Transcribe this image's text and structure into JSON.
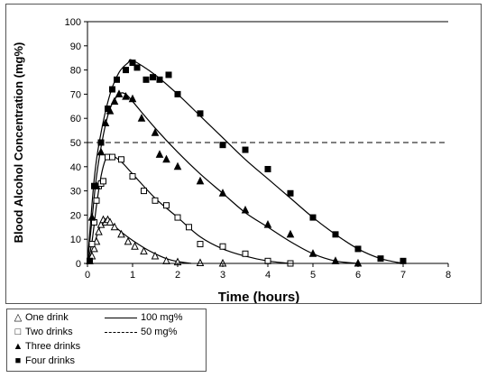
{
  "chart_data": {
    "type": "scatter",
    "title": "",
    "xlabel": "Time (hours)",
    "ylabel": "Blood Alcohol Concentration (mg%)",
    "xlim": [
      0,
      8
    ],
    "ylim": [
      0,
      100
    ],
    "xticks": [
      "0",
      "1",
      "2",
      "3",
      "4",
      "5",
      "6",
      "7",
      "8"
    ],
    "yticks": [
      "0",
      "10",
      "20",
      "30",
      "40",
      "50",
      "60",
      "70",
      "80",
      "90",
      "100"
    ],
    "reference_lines": [
      {
        "label": "100 mg%",
        "y": 100,
        "style": "solid"
      },
      {
        "label": "50 mg%",
        "y": 50,
        "style": "dashed"
      }
    ],
    "legend_position": "bottom-left, below chart",
    "series": [
      {
        "name": "One drink",
        "marker": "open-triangle",
        "points": [
          [
            0.05,
            1
          ],
          [
            0.1,
            3
          ],
          [
            0.15,
            6
          ],
          [
            0.2,
            9
          ],
          [
            0.25,
            13
          ],
          [
            0.3,
            16
          ],
          [
            0.35,
            18
          ],
          [
            0.4,
            17
          ],
          [
            0.45,
            18
          ],
          [
            0.5,
            17
          ],
          [
            0.6,
            15
          ],
          [
            0.75,
            12
          ],
          [
            0.9,
            9
          ],
          [
            1.05,
            7
          ],
          [
            1.25,
            5
          ],
          [
            1.5,
            3
          ],
          [
            1.75,
            1
          ],
          [
            2.0,
            0.5
          ],
          [
            2.5,
            0.2
          ],
          [
            3.0,
            0
          ]
        ],
        "curve": [
          [
            0,
            0
          ],
          [
            0.1,
            5
          ],
          [
            0.2,
            11
          ],
          [
            0.3,
            16
          ],
          [
            0.4,
            18
          ],
          [
            0.5,
            17
          ],
          [
            0.75,
            13
          ],
          [
            1.0,
            9.5
          ],
          [
            1.25,
            6.5
          ],
          [
            1.5,
            4
          ],
          [
            1.75,
            2
          ],
          [
            2.0,
            0.8
          ],
          [
            2.3,
            0
          ]
        ]
      },
      {
        "name": "Two drinks",
        "marker": "open-square",
        "points": [
          [
            0.05,
            1
          ],
          [
            0.1,
            8
          ],
          [
            0.15,
            17
          ],
          [
            0.2,
            26
          ],
          [
            0.25,
            32
          ],
          [
            0.3,
            33
          ],
          [
            0.35,
            34
          ],
          [
            0.45,
            44
          ],
          [
            0.55,
            44
          ],
          [
            0.75,
            43
          ],
          [
            1.0,
            36
          ],
          [
            1.25,
            30
          ],
          [
            1.5,
            26
          ],
          [
            1.75,
            24
          ],
          [
            2.0,
            19
          ],
          [
            2.25,
            15
          ],
          [
            2.5,
            8
          ],
          [
            3.0,
            7
          ],
          [
            3.5,
            4
          ],
          [
            4.0,
            1
          ],
          [
            4.5,
            0
          ]
        ],
        "curve": [
          [
            0,
            0
          ],
          [
            0.1,
            9
          ],
          [
            0.2,
            24
          ],
          [
            0.3,
            36
          ],
          [
            0.4,
            43
          ],
          [
            0.5,
            45
          ],
          [
            0.75,
            42
          ],
          [
            1.0,
            37
          ],
          [
            1.5,
            27
          ],
          [
            2.0,
            19
          ],
          [
            2.5,
            11
          ],
          [
            3.0,
            6
          ],
          [
            3.5,
            3
          ],
          [
            4.0,
            1
          ],
          [
            4.5,
            0
          ]
        ]
      },
      {
        "name": "Three drinks",
        "marker": "filled-triangle",
        "points": [
          [
            0.1,
            19
          ],
          [
            0.2,
            32
          ],
          [
            0.3,
            46
          ],
          [
            0.4,
            58
          ],
          [
            0.5,
            63
          ],
          [
            0.6,
            67
          ],
          [
            0.7,
            70
          ],
          [
            0.85,
            69
          ],
          [
            1.0,
            68
          ],
          [
            1.2,
            60
          ],
          [
            1.5,
            54
          ],
          [
            1.6,
            45
          ],
          [
            1.75,
            43
          ],
          [
            2.0,
            40
          ],
          [
            2.5,
            34
          ],
          [
            3.0,
            29
          ],
          [
            3.5,
            22
          ],
          [
            4.0,
            16
          ],
          [
            4.5,
            12
          ],
          [
            5.0,
            4
          ],
          [
            5.5,
            1
          ],
          [
            6.0,
            0
          ]
        ],
        "curve": [
          [
            0,
            0
          ],
          [
            0.1,
            18
          ],
          [
            0.2,
            36
          ],
          [
            0.35,
            53
          ],
          [
            0.5,
            64
          ],
          [
            0.7,
            70
          ],
          [
            0.85,
            70
          ],
          [
            1.0,
            67
          ],
          [
            1.5,
            56
          ],
          [
            2.0,
            46
          ],
          [
            2.5,
            37
          ],
          [
            3.0,
            29
          ],
          [
            3.5,
            21
          ],
          [
            4.0,
            15
          ],
          [
            4.5,
            9
          ],
          [
            5.0,
            4
          ],
          [
            5.5,
            1
          ],
          [
            6.0,
            0
          ]
        ]
      },
      {
        "name": "Four drinks",
        "marker": "filled-square",
        "points": [
          [
            0.05,
            1
          ],
          [
            0.15,
            32
          ],
          [
            0.3,
            50
          ],
          [
            0.45,
            64
          ],
          [
            0.55,
            72
          ],
          [
            0.65,
            76
          ],
          [
            0.85,
            80
          ],
          [
            1.0,
            83
          ],
          [
            1.1,
            81
          ],
          [
            1.3,
            76
          ],
          [
            1.45,
            77
          ],
          [
            1.6,
            76
          ],
          [
            1.8,
            78
          ],
          [
            2.0,
            70
          ],
          [
            2.5,
            62
          ],
          [
            3.0,
            49
          ],
          [
            3.5,
            47
          ],
          [
            4.0,
            39
          ],
          [
            4.5,
            29
          ],
          [
            5.0,
            19
          ],
          [
            5.5,
            12
          ],
          [
            6.0,
            6
          ],
          [
            6.5,
            2
          ],
          [
            7.0,
            1
          ]
        ],
        "curve": [
          [
            0,
            0
          ],
          [
            0.15,
            35
          ],
          [
            0.3,
            54
          ],
          [
            0.5,
            70
          ],
          [
            0.7,
            79
          ],
          [
            0.9,
            83
          ],
          [
            1.0,
            84
          ],
          [
            1.5,
            78
          ],
          [
            2.0,
            70
          ],
          [
            2.5,
            61
          ],
          [
            3.0,
            52
          ],
          [
            3.5,
            43
          ],
          [
            4.0,
            35
          ],
          [
            4.5,
            27
          ],
          [
            5.0,
            19
          ],
          [
            5.5,
            12
          ],
          [
            6.0,
            6
          ],
          [
            6.5,
            2
          ],
          [
            7.0,
            0
          ]
        ]
      }
    ]
  },
  "legend": {
    "markers": [
      {
        "symbol": "△",
        "label": "One drink"
      },
      {
        "symbol": "□",
        "label": "Two drinks"
      },
      {
        "symbol": "▲",
        "label": "Three drinks"
      },
      {
        "symbol": "■",
        "label": "Four drinks"
      }
    ],
    "lines": [
      {
        "label": "100 mg%",
        "style": "solid"
      },
      {
        "label": "50 mg%",
        "style": "dashed"
      }
    ]
  }
}
